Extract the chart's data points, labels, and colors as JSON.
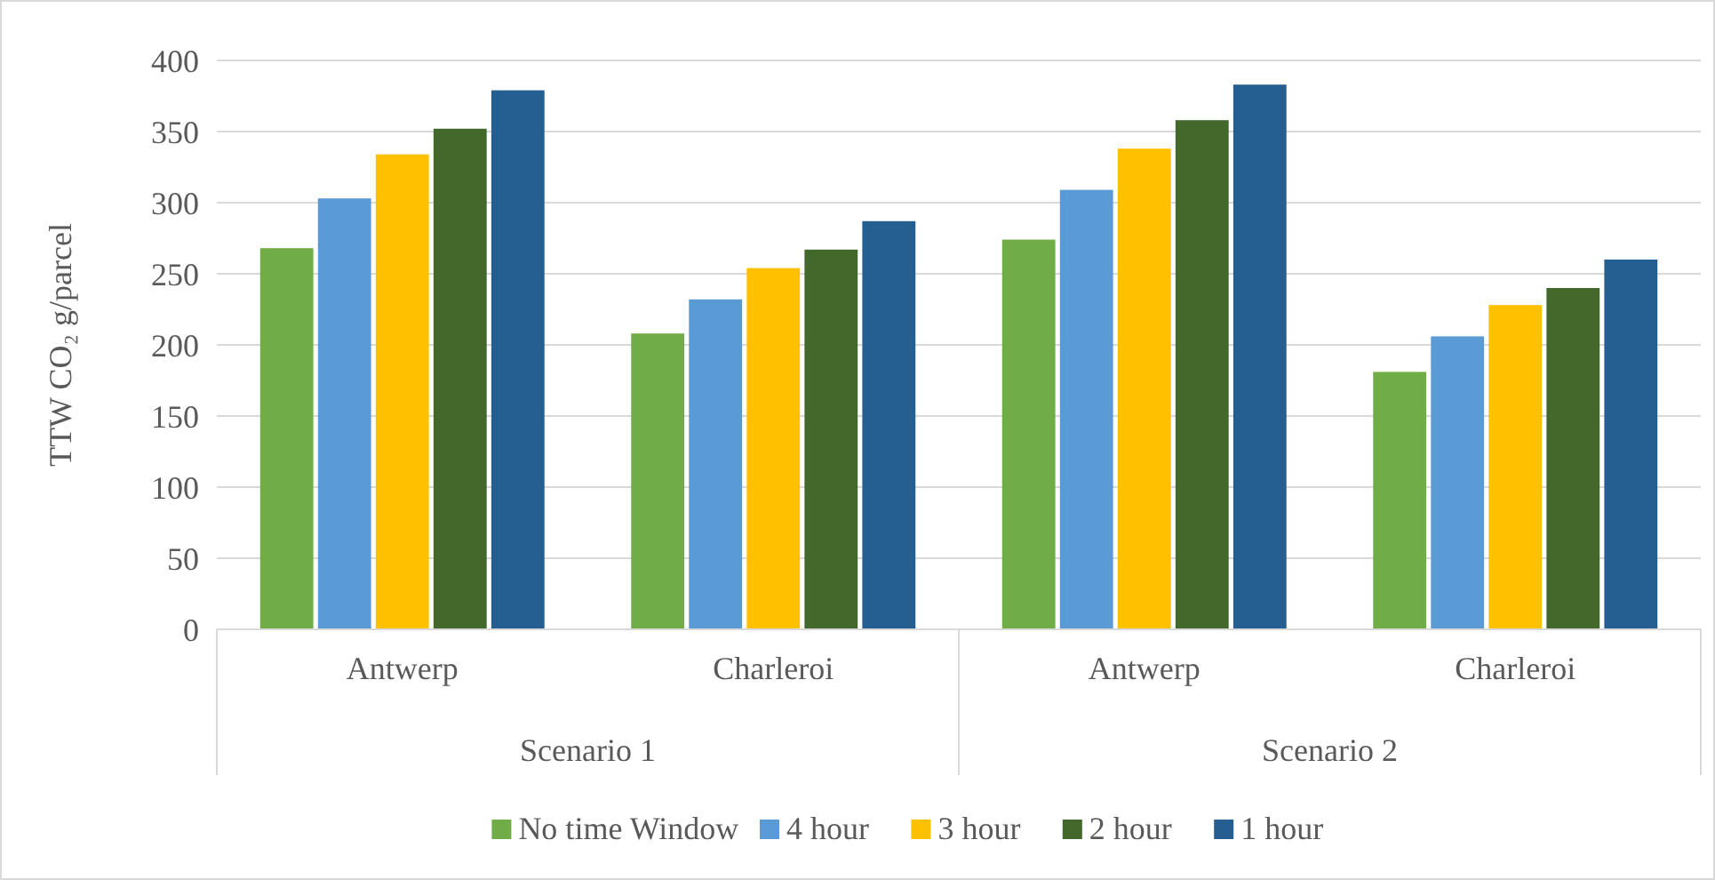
{
  "chart_data": {
    "type": "bar",
    "ylabel": "TTW CO₂ g/parcel",
    "categories": [
      "Antwerp",
      "Charleroi",
      "Antwerp",
      "Charleroi"
    ],
    "series": [
      {
        "name": "No time Window",
        "color": "#70ad47",
        "values": [
          268,
          208,
          274,
          181
        ]
      },
      {
        "name": "4 hour",
        "color": "#5b9bd5",
        "values": [
          303,
          232,
          309,
          206
        ]
      },
      {
        "name": "3 hour",
        "color": "#ffc000",
        "values": [
          334,
          254,
          338,
          228
        ]
      },
      {
        "name": "2 hour",
        "color": "#43682b",
        "values": [
          352,
          267,
          358,
          240
        ]
      },
      {
        "name": "1 hour",
        "color": "#255e91",
        "values": [
          379,
          287,
          383,
          260
        ]
      }
    ],
    "annotations": [
      "Scenario 1",
      "Scenario 2"
    ],
    "ylim": [
      0,
      400
    ],
    "yticks": [
      0,
      50,
      100,
      150,
      200,
      250,
      300,
      350,
      400
    ],
    "grid": "y",
    "legend": "bottom"
  }
}
